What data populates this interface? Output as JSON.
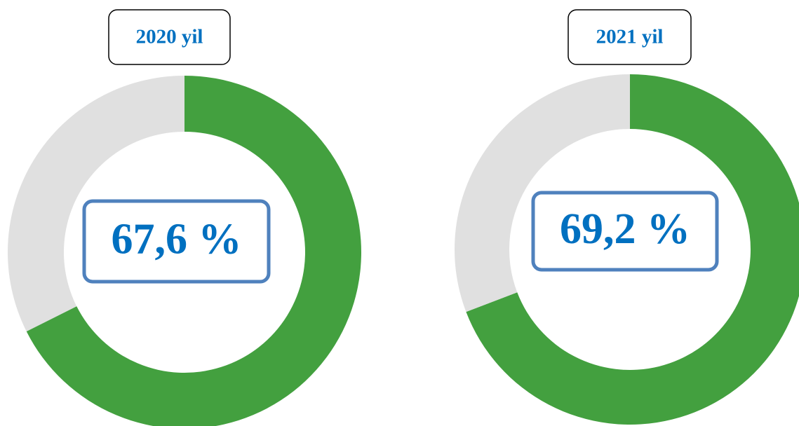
{
  "chart_data": [
    {
      "type": "donut",
      "title": "2020 yil",
      "values": [
        67.6,
        32.4
      ],
      "value_labels": [
        "67,6 %",
        null
      ],
      "colors": [
        "#43a03f",
        "#e0e0e0"
      ]
    },
    {
      "type": "donut",
      "title": "2021 yil",
      "values": [
        69.2,
        30.8
      ],
      "value_labels": [
        "69,2 %",
        null
      ],
      "colors": [
        "#43a03f",
        "#e0e0e0"
      ]
    }
  ]
}
